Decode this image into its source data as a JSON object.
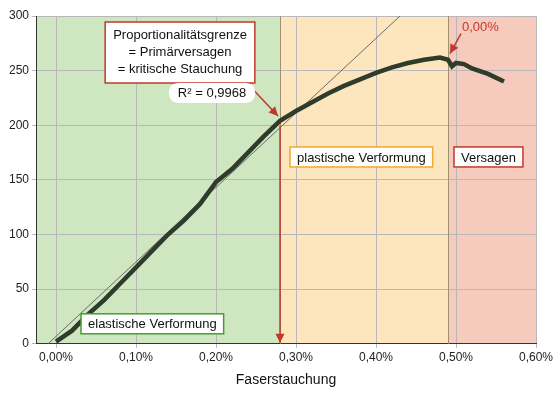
{
  "chart_data": {
    "type": "line",
    "x_label": "Faserstauchung",
    "xlim": [
      -0.025,
      0.6
    ],
    "xticks": [
      {
        "value": 0,
        "label": "0,00%"
      },
      {
        "value": 0.1,
        "label": "0,10%"
      },
      {
        "value": 0.2,
        "label": "0,20%"
      },
      {
        "value": 0.3,
        "label": "0,30%"
      },
      {
        "value": 0.4,
        "label": "0,40%"
      },
      {
        "value": 0.5,
        "label": "0,50%"
      },
      {
        "value": 0.6,
        "label": "0,60%"
      }
    ],
    "ylim": [
      0,
      300
    ],
    "yticks": [
      0,
      50,
      100,
      150,
      200,
      250,
      300
    ],
    "grid": true,
    "series": [
      {
        "color": "#2f3b2b",
        "line_style": "solid",
        "x": [
          0,
          0.02,
          0.04,
          0.06,
          0.08,
          0.1,
          0.12,
          0.14,
          0.16,
          0.18,
          0.2,
          0.22,
          0.24,
          0.26,
          0.28,
          0.3,
          0.32,
          0.34,
          0.36,
          0.38,
          0.4,
          0.42,
          0.44,
          0.46,
          0.48,
          0.49,
          0.495,
          0.5,
          0.51,
          0.52,
          0.54,
          0.56
        ],
        "values": [
          2,
          12,
          27,
          40,
          55,
          70,
          85,
          100,
          113,
          128,
          148,
          160,
          175,
          190,
          204,
          213,
          221,
          229,
          236,
          242,
          248,
          253,
          257,
          260,
          262,
          260,
          254,
          257,
          256,
          252,
          247,
          240
        ]
      },
      {
        "color": "#6b6b6b",
        "line_style": "solid",
        "x": [
          -0.01,
          0.43
        ],
        "values": [
          0,
          300
        ]
      }
    ],
    "zones": [
      {
        "label": "elastische Verformung",
        "from": -0.025,
        "to": 0.28,
        "color": "#cfe7c0",
        "border": "#4a9a3a"
      },
      {
        "label": "plastische Verformung",
        "from": 0.28,
        "to": 0.49,
        "color": "#fde6be",
        "border": "#f0a830"
      },
      {
        "label": "Versagen",
        "from": 0.49,
        "to": 0.6,
        "color": "#f6cbbd",
        "border": "#c0392b"
      }
    ],
    "annotations": [
      {
        "text": [
          "Proportionalitätsgrenze",
          "= Primärversagen",
          "= kritische Stauchung"
        ],
        "x": 0.28,
        "y": 204,
        "color": "#c0392b"
      },
      {
        "text": "R² = 0,9968"
      },
      {
        "text": "0,00%",
        "x": 0.49,
        "y": 262,
        "color": "#c0392b"
      }
    ]
  }
}
